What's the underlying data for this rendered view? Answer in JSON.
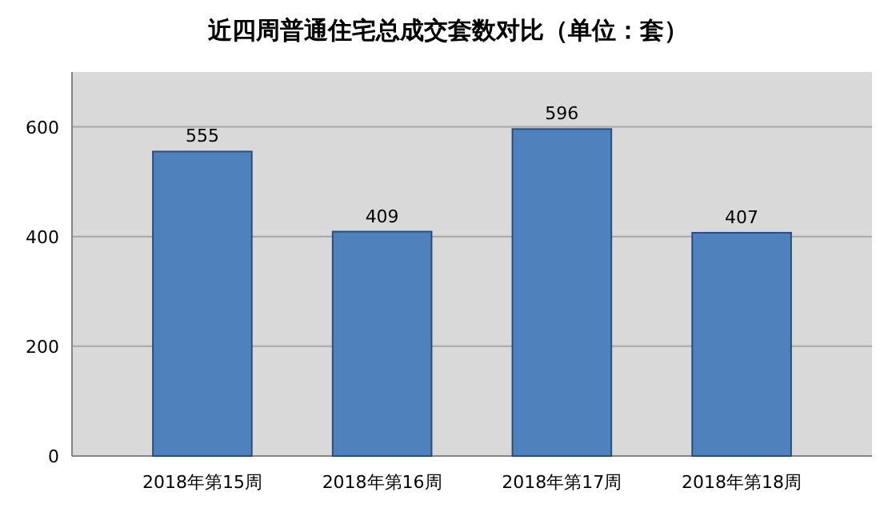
{
  "chart_data": {
    "type": "bar",
    "title": "近四周普通住宅总成交套数对比（单位：套）",
    "categories": [
      "2018年第15周",
      "2018年第16周",
      "2018年第17周",
      "2018年第18周"
    ],
    "values": [
      555,
      409,
      596,
      407
    ],
    "color": "#4f81bd",
    "ylim": [
      0,
      700
    ],
    "yticks": [
      0,
      200,
      400,
      600
    ],
    "grid": "y",
    "data_labels": true
  }
}
